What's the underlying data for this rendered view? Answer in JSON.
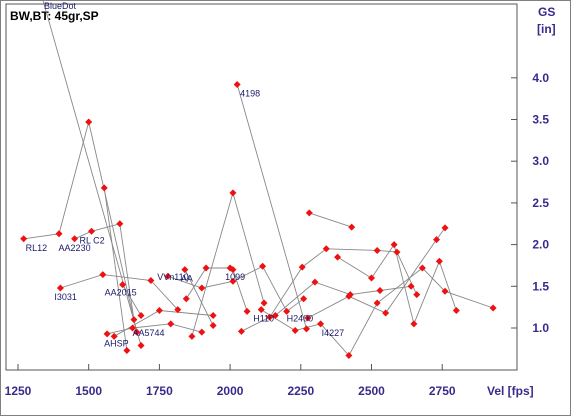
{
  "chart_data": {
    "type": "scatter",
    "title": "BW,BT:  45gr,SP",
    "ylabel_line1": "GS",
    "ylabel_line2": "[in]",
    "xlabel": "Vel [fps]",
    "xlim": [
      1200,
      3000
    ],
    "ylim": [
      0.6,
      5.0
    ],
    "x_ticks": [
      1250,
      1500,
      1750,
      2000,
      2250,
      2500,
      2750
    ],
    "x_tick_labels": [
      "1250",
      "1500",
      "1750",
      "2000",
      "2250",
      "2500",
      "2750"
    ],
    "y_ticks": [
      1.0,
      1.5,
      2.0,
      2.5,
      3.0,
      3.5,
      4.0
    ],
    "y_tick_labels": [
      "1.0",
      "1.5",
      "2.0",
      "2.5",
      "3.0",
      "3.5",
      "4.0"
    ],
    "grid": false,
    "marker_color": "#ee1111",
    "line_color": "#888888",
    "series": [
      {
        "name": "BlueDot",
        "points": [
          [
            1335,
            4.97
          ],
          [
            1685,
            0.79
          ]
        ]
      },
      {
        "name": "4198",
        "points": [
          [
            2025,
            3.92
          ],
          [
            2270,
            0.99
          ]
        ]
      },
      {
        "name": "RL12",
        "points": [
          [
            1270,
            2.07
          ],
          [
            1395,
            2.13
          ],
          [
            1500,
            3.47
          ],
          [
            1670,
            0.95
          ]
        ]
      },
      {
        "name": "RL C2",
        "points": [
          [
            1555,
            2.68
          ],
          [
            1635,
            0.73
          ]
        ]
      },
      {
        "name": "AA2230",
        "points": [
          [
            1450,
            2.07
          ],
          [
            1510,
            2.16
          ],
          [
            1610,
            2.25
          ],
          [
            1660,
            1.1
          ]
        ]
      },
      {
        "name": "I3031",
        "points": [
          [
            1400,
            1.48
          ],
          [
            1550,
            1.64
          ],
          [
            1720,
            1.57
          ],
          [
            1815,
            1.22
          ]
        ]
      },
      {
        "name": "AA2015",
        "points": [
          [
            1620,
            1.52
          ],
          [
            1685,
            1.15
          ]
        ]
      },
      {
        "name": "AA5744",
        "points": [
          [
            1565,
            0.93
          ],
          [
            1655,
            1.0
          ],
          [
            1790,
            1.05
          ],
          [
            1900,
            0.95
          ]
        ]
      },
      {
        "name": "AA",
        "points": [
          [
            1840,
            1.7
          ],
          [
            1940,
            1.03
          ]
        ]
      },
      {
        "name": "AHSP",
        "points": [
          [
            1590,
            0.9
          ],
          [
            1750,
            1.21
          ],
          [
            1940,
            1.15
          ]
        ]
      },
      {
        "name": "VVn110",
        "points": [
          [
            1845,
            1.35
          ],
          [
            1915,
            1.72
          ],
          [
            2000,
            1.72
          ],
          [
            2010,
            1.7
          ],
          [
            2060,
            1.2
          ]
        ]
      },
      {
        "name": "1099",
        "points": [
          [
            1865,
            0.9
          ],
          [
            2010,
            2.62
          ],
          [
            2120,
            1.3
          ]
        ]
      },
      {
        "name": "H110",
        "points": [
          [
            1780,
            1.62
          ],
          [
            1900,
            1.48
          ],
          [
            2010,
            1.56
          ],
          [
            2115,
            1.74
          ],
          [
            2200,
            1.2
          ],
          [
            2260,
            1.35
          ]
        ]
      },
      {
        "name": "H2400",
        "points": [
          [
            2040,
            0.96
          ],
          [
            2140,
            1.13
          ],
          [
            2255,
            1.73
          ],
          [
            2340,
            1.95
          ],
          [
            2520,
            1.93
          ],
          [
            2590,
            1.91
          ],
          [
            2660,
            1.4
          ]
        ]
      },
      {
        "name": "I4227",
        "points": [
          [
            2110,
            1.22
          ],
          [
            2230,
            0.97
          ],
          [
            2320,
            1.05
          ],
          [
            2420,
            0.67
          ],
          [
            2520,
            1.3
          ],
          [
            2680,
            1.72
          ],
          [
            2760,
            1.44
          ],
          [
            2930,
            1.24
          ]
        ]
      },
      {
        "name": "",
        "points": [
          [
            2280,
            2.38
          ],
          [
            2430,
            2.21
          ]
        ]
      },
      {
        "name": "",
        "points": [
          [
            2160,
            1.15
          ],
          [
            2300,
            1.55
          ],
          [
            2425,
            1.4
          ],
          [
            2530,
            1.45
          ],
          [
            2640,
            1.5
          ]
        ]
      },
      {
        "name": "",
        "points": [
          [
            2275,
            1.12
          ],
          [
            2420,
            1.38
          ],
          [
            2550,
            1.18
          ],
          [
            2730,
            2.06
          ],
          [
            2760,
            2.2
          ]
        ]
      },
      {
        "name": "",
        "points": [
          [
            2380,
            1.85
          ],
          [
            2500,
            1.6
          ],
          [
            2580,
            2.0
          ],
          [
            2650,
            1.05
          ],
          [
            2740,
            1.8
          ],
          [
            2800,
            1.21
          ]
        ]
      }
    ],
    "point_labels": [
      {
        "text": "BlueDot",
        "x": 1335,
        "y": 4.97
      },
      {
        "text": "4198",
        "x": 2025,
        "y": 3.92
      },
      {
        "text": "RL12",
        "x": 1270,
        "y": 2.07
      },
      {
        "text": "RL C2",
        "x": 1510,
        "y": 2.16
      },
      {
        "text": "AA2230",
        "x": 1450,
        "y": 2.07
      },
      {
        "text": "I3031",
        "x": 1400,
        "y": 1.48
      },
      {
        "text": "AA2015",
        "x": 1620,
        "y": 1.52
      },
      {
        "text": "AA",
        "x": 1840,
        "y": 1.7
      },
      {
        "text": "VVn110",
        "x": 1845,
        "y": 1.72
      },
      {
        "text": "1099",
        "x": 2000,
        "y": 1.72
      },
      {
        "text": "AA5744",
        "x": 1655,
        "y": 1.0
      },
      {
        "text": "AHSP",
        "x": 1590,
        "y": 0.9
      },
      {
        "text": "H2400",
        "x": 2200,
        "y": 1.2
      },
      {
        "text": "H110",
        "x": 2110,
        "y": 1.22
      },
      {
        "text": "I4227",
        "x": 2320,
        "y": 1.05
      }
    ]
  }
}
